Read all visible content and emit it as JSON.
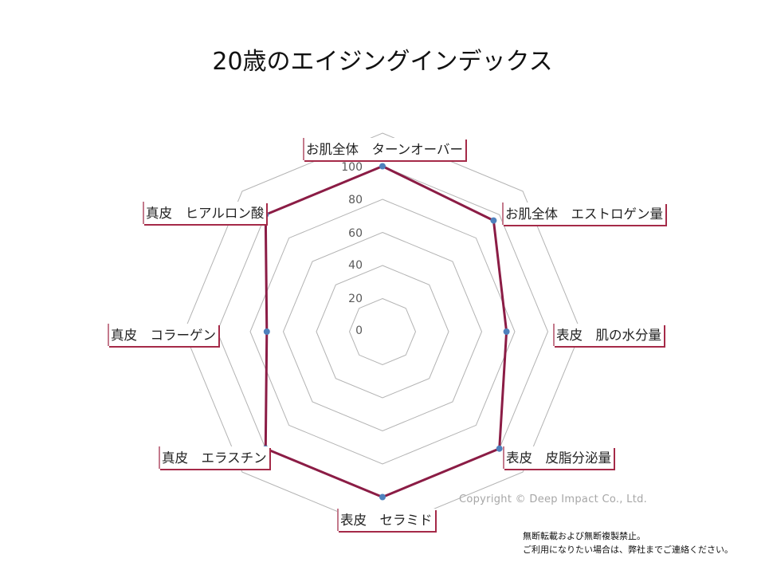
{
  "chart_data": {
    "type": "radar",
    "title": "20歳のエイジングインデックス",
    "categories": [
      "お肌全体　ターンオーバー",
      "お肌全体　エストロゲン量",
      "表皮　肌の水分量",
      "表皮　皮脂分泌量",
      "表皮　セラミド",
      "真皮　エラスチン",
      "真皮　コラーゲン",
      "真皮　ヒアルロン酸"
    ],
    "series": [
      {
        "values": [
          100,
          95,
          75,
          100,
          100,
          100,
          70,
          100
        ],
        "color": "#8b1c45",
        "marker_color": "#4f81bd"
      }
    ],
    "rlim": [
      0,
      120
    ],
    "ticks": [
      "0",
      "20",
      "40",
      "60",
      "80",
      "100"
    ],
    "grid": true
  },
  "footer": {
    "copyright": "Copyright © Deep Impact Co., Ltd.",
    "notice_line1": "無断転載および無断複製禁止。",
    "notice_line2": "ご利用になりたい場合は、弊社までご連絡ください。"
  }
}
